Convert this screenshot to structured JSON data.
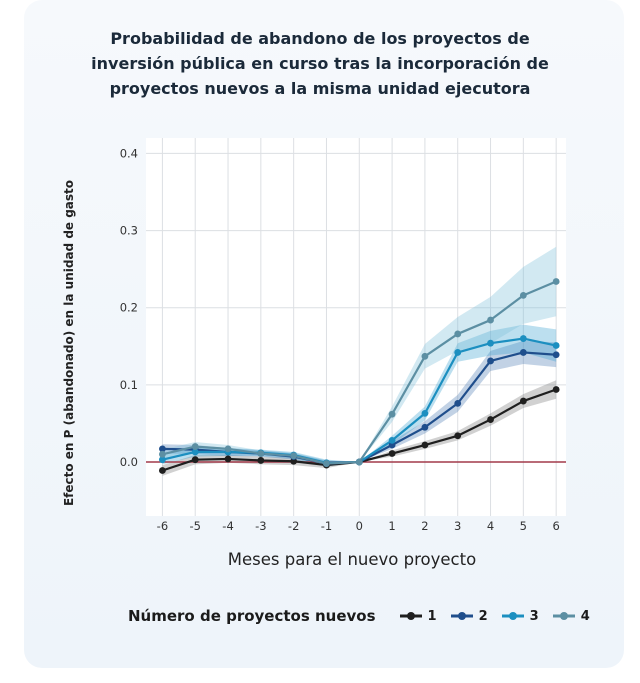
{
  "title_lines": [
    "Probabilidad de abandono de los proyectos de",
    "inversión pública en curso tras la incorporación de",
    "proyectos nuevos a la misma unidad ejecutora"
  ],
  "legend_title": "Número de proyectos nuevos",
  "chart_data": {
    "type": "line",
    "title": "Probabilidad de abandono de los proyectos de inversión pública en curso tras la incorporación de proyectos nuevos a la misma unidad ejecutora",
    "xlabel": "Meses para el nuevo proyecto",
    "ylabel": "Efecto en P (abandonado) en la unidad de gasto",
    "x": [
      -6,
      -5,
      -4,
      -3,
      -2,
      -1,
      0,
      1,
      2,
      3,
      4,
      5,
      6
    ],
    "x_tick_labels": [
      "-6",
      "-5",
      "-4",
      "-3",
      "-2",
      "-1",
      "0",
      "1",
      "2",
      "3",
      "4",
      "5",
      "6"
    ],
    "y_ticks": [
      0.0,
      0.1,
      0.2,
      0.3,
      0.4
    ],
    "y_tick_labels": [
      "0.0",
      "0.1",
      "0.2",
      "0.3",
      "0.4"
    ],
    "xlim": [
      -6.5,
      6.3
    ],
    "ylim": [
      -0.07,
      0.42
    ],
    "grid": true,
    "reference_line": 0.0,
    "series": [
      {
        "name": "1",
        "color": "#1f1f1f",
        "band": "#7a7a7a",
        "values": [
          -0.011,
          0.003,
          0.004,
          0.002,
          0.001,
          -0.004,
          0.0,
          0.011,
          0.022,
          0.034,
          0.055,
          0.079,
          0.094
        ],
        "ci": [
          0.007,
          0.006,
          0.005,
          0.005,
          0.005,
          0.004,
          0.0,
          0.004,
          0.005,
          0.006,
          0.008,
          0.009,
          0.012
        ]
      },
      {
        "name": "2",
        "color": "#1f4e8c",
        "band": "#4f7fb5",
        "values": [
          0.017,
          0.016,
          0.013,
          0.011,
          0.007,
          -0.002,
          0.0,
          0.022,
          0.045,
          0.076,
          0.131,
          0.142,
          0.139
        ],
        "ci": [
          0.006,
          0.006,
          0.005,
          0.004,
          0.004,
          0.004,
          0.0,
          0.005,
          0.008,
          0.011,
          0.013,
          0.015,
          0.016
        ]
      },
      {
        "name": "3",
        "color": "#1c8fc0",
        "band": "#3fa3d0",
        "values": [
          0.003,
          0.013,
          0.013,
          0.012,
          0.009,
          -0.001,
          0.0,
          0.028,
          0.063,
          0.142,
          0.154,
          0.16,
          0.151
        ],
        "ci": [
          0.006,
          0.006,
          0.005,
          0.004,
          0.004,
          0.004,
          0.0,
          0.006,
          0.009,
          0.012,
          0.016,
          0.018,
          0.021
        ]
      },
      {
        "name": "4",
        "color": "#5c8fa3",
        "band": "#7ec0da",
        "values": [
          0.01,
          0.02,
          0.017,
          0.011,
          0.008,
          -0.002,
          0.0,
          0.062,
          0.137,
          0.166,
          0.184,
          0.216,
          0.234
        ],
        "ci": [
          0.006,
          0.006,
          0.005,
          0.004,
          0.004,
          0.004,
          0.0,
          0.01,
          0.016,
          0.022,
          0.03,
          0.037,
          0.045
        ]
      }
    ]
  }
}
